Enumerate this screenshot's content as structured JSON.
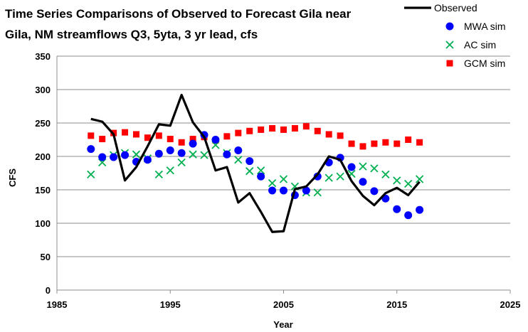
{
  "chart_data": {
    "type": "line",
    "title_lines": [
      "Time Series Comparisons  of Observed to Forecast Gila near",
      "Gila, NM streamflows Q3, 5yta, 3 yr lead, cfs"
    ],
    "xlabel": "Year",
    "ylabel": "CFS",
    "xlim": [
      1985,
      2025
    ],
    "ylim": [
      0,
      350
    ],
    "x_ticks": [
      "1985",
      "1995",
      "2005",
      "2015",
      "2025"
    ],
    "y_ticks": [
      "0",
      "50",
      "100",
      "150",
      "200",
      "250",
      "300",
      "350"
    ],
    "grid": "horizontal",
    "legend_position": "top-right",
    "x": [
      1988,
      1989,
      1990,
      1991,
      1992,
      1993,
      1994,
      1995,
      1996,
      1997,
      1998,
      1999,
      2000,
      2001,
      2002,
      2003,
      2004,
      2005,
      2006,
      2007,
      2008,
      2009,
      2010,
      2011,
      2012,
      2013,
      2014,
      2015,
      2016,
      2017
    ],
    "series": [
      {
        "name": "Observed",
        "style": "line",
        "color": "#000000",
        "values": [
          256,
          252,
          233,
          164,
          184,
          215,
          248,
          246,
          292,
          251,
          229,
          179,
          184,
          131,
          145,
          117,
          87,
          88,
          151,
          155,
          173,
          200,
          195,
          163,
          141,
          127,
          145,
          153,
          142,
          162
        ]
      },
      {
        "name": "MWA sim",
        "style": "circle",
        "color": "#0000ff",
        "values": [
          211,
          199,
          199,
          202,
          192,
          195,
          204,
          209,
          205,
          219,
          232,
          225,
          203,
          209,
          193,
          170,
          149,
          149,
          142,
          149,
          170,
          191,
          198,
          184,
          162,
          148,
          137,
          121,
          112,
          120
        ]
      },
      {
        "name": "AC sim",
        "style": "x",
        "color": "#00b050",
        "values": [
          173,
          191,
          202,
          205,
          203,
          197,
          173,
          179,
          191,
          203,
          202,
          217,
          205,
          195,
          178,
          179,
          160,
          166,
          155,
          146,
          146,
          168,
          170,
          174,
          185,
          182,
          173,
          164,
          159,
          166
        ]
      },
      {
        "name": "GCM sim",
        "style": "square",
        "color": "#ff0000",
        "values": [
          231,
          226,
          235,
          236,
          233,
          228,
          231,
          226,
          221,
          226,
          229,
          224,
          230,
          235,
          238,
          240,
          242,
          240,
          242,
          245,
          238,
          233,
          231,
          219,
          215,
          219,
          221,
          219,
          225,
          221
        ]
      }
    ]
  }
}
